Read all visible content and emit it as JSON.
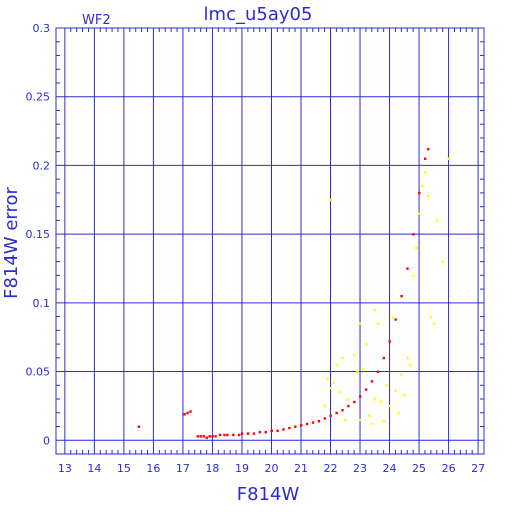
{
  "chart_data": {
    "type": "scatter",
    "title": "lmc_u5ay05",
    "annotation": "WF2",
    "xlabel": "F814W",
    "ylabel": "F814W error",
    "xlim": [
      12.7,
      27.2
    ],
    "ylim": [
      -0.01,
      0.3
    ],
    "xticks": [
      "13",
      "14",
      "15",
      "16",
      "17",
      "18",
      "19",
      "20",
      "21",
      "22",
      "23",
      "24",
      "25",
      "26",
      "27"
    ],
    "yticks": [
      "0",
      "0.05",
      "0.1",
      "0.15",
      "0.2",
      "0.25",
      "0.3"
    ],
    "grid": true,
    "colors": {
      "axis": "#2b2bd6",
      "primary": "#ff0000",
      "secondary": "#ffff00",
      "background": "#ffffff"
    },
    "series": [
      {
        "color": "#ff0000",
        "points": [
          [
            15.5,
            0.01
          ],
          [
            17.05,
            0.019
          ],
          [
            17.15,
            0.02
          ],
          [
            17.25,
            0.021
          ],
          [
            17.5,
            0.003
          ],
          [
            17.6,
            0.003
          ],
          [
            17.7,
            0.003
          ],
          [
            17.8,
            0.002
          ],
          [
            17.9,
            0.003
          ],
          [
            18.0,
            0.003
          ],
          [
            18.1,
            0.003
          ],
          [
            18.25,
            0.004
          ],
          [
            18.4,
            0.004
          ],
          [
            18.5,
            0.004
          ],
          [
            18.7,
            0.004
          ],
          [
            18.9,
            0.004
          ],
          [
            19.0,
            0.005
          ],
          [
            19.2,
            0.005
          ],
          [
            19.4,
            0.005
          ],
          [
            19.6,
            0.006
          ],
          [
            19.8,
            0.006
          ],
          [
            20.0,
            0.007
          ],
          [
            20.2,
            0.007
          ],
          [
            20.4,
            0.008
          ],
          [
            20.6,
            0.009
          ],
          [
            20.8,
            0.01
          ],
          [
            21.0,
            0.011
          ],
          [
            21.2,
            0.012
          ],
          [
            21.4,
            0.013
          ],
          [
            21.6,
            0.014
          ],
          [
            21.8,
            0.016
          ],
          [
            22.0,
            0.018
          ],
          [
            22.2,
            0.02
          ],
          [
            22.4,
            0.022
          ],
          [
            22.6,
            0.025
          ],
          [
            22.8,
            0.028
          ],
          [
            23.0,
            0.032
          ],
          [
            23.2,
            0.037
          ],
          [
            23.4,
            0.043
          ],
          [
            23.6,
            0.05
          ],
          [
            23.8,
            0.06
          ],
          [
            24.0,
            0.072
          ],
          [
            24.2,
            0.088
          ],
          [
            24.4,
            0.105
          ],
          [
            24.6,
            0.125
          ],
          [
            24.8,
            0.15
          ],
          [
            25.0,
            0.18
          ],
          [
            25.2,
            0.205
          ],
          [
            25.3,
            0.212
          ]
        ]
      },
      {
        "color": "#ffff00",
        "points": [
          [
            21.8,
            0.025
          ],
          [
            21.9,
            0.045
          ],
          [
            22.0,
            0.038
          ],
          [
            22.1,
            0.042
          ],
          [
            22.2,
            0.055
          ],
          [
            22.3,
            0.035
          ],
          [
            22.5,
            0.015
          ],
          [
            22.6,
            0.03
          ],
          [
            22.8,
            0.062
          ],
          [
            22.9,
            0.05
          ],
          [
            23.0,
            0.015
          ],
          [
            23.1,
            0.052
          ],
          [
            23.2,
            0.07
          ],
          [
            23.3,
            0.018
          ],
          [
            23.4,
            0.012
          ],
          [
            23.5,
            0.03
          ],
          [
            23.6,
            0.085
          ],
          [
            23.7,
            0.028
          ],
          [
            23.8,
            0.014
          ],
          [
            23.9,
            0.04
          ],
          [
            24.0,
            0.025
          ],
          [
            24.1,
            0.09
          ],
          [
            24.2,
            0.036
          ],
          [
            24.3,
            0.02
          ],
          [
            24.4,
            0.048
          ],
          [
            24.5,
            0.033
          ],
          [
            24.6,
            0.06
          ],
          [
            24.7,
            0.055
          ],
          [
            24.8,
            0.12
          ],
          [
            24.9,
            0.14
          ],
          [
            25.0,
            0.165
          ],
          [
            25.1,
            0.185
          ],
          [
            25.2,
            0.195
          ],
          [
            25.3,
            0.178
          ],
          [
            25.4,
            0.09
          ],
          [
            25.5,
            0.085
          ],
          [
            25.6,
            0.16
          ],
          [
            25.8,
            0.13
          ],
          [
            26.0,
            0.205
          ],
          [
            22.0,
            0.175
          ],
          [
            23.5,
            0.095
          ],
          [
            22.4,
            0.06
          ],
          [
            23.0,
            0.085
          ]
        ]
      }
    ]
  }
}
